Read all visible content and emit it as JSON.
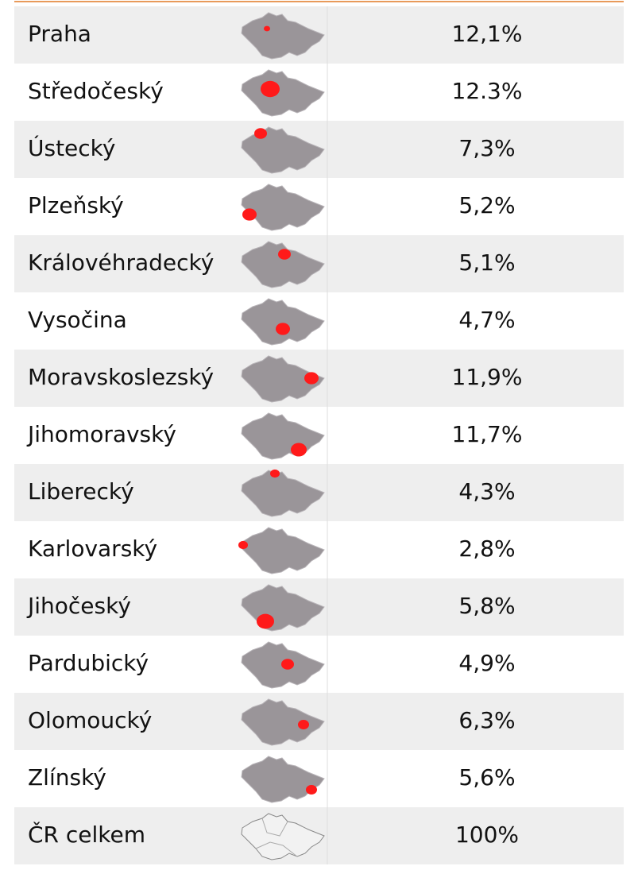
{
  "table": {
    "rows": [
      [
        "Praha",
        "12,1%"
      ],
      [
        "Středočeský",
        "12.3%"
      ],
      [
        "Ústecký",
        "7,3%"
      ],
      [
        "Plzeňský",
        "5,2%"
      ],
      [
        "Královéhradecký",
        "5,1%"
      ],
      [
        "Vysočina",
        "4,7%"
      ],
      [
        "Moravskoslezský",
        "11,9%"
      ],
      [
        "Jihomoravský",
        "11,7%"
      ],
      [
        "Liberecký",
        "4,3%"
      ],
      [
        "Karlovarský",
        "2,8%"
      ],
      [
        "Jihočeský",
        "5,8%"
      ],
      [
        "Pardubický",
        "4,9%"
      ],
      [
        "Olomoucký",
        "6,3%"
      ],
      [
        "Zlínský",
        "5,6%"
      ],
      [
        "ČR celkem",
        "100%"
      ]
    ]
  }
}
